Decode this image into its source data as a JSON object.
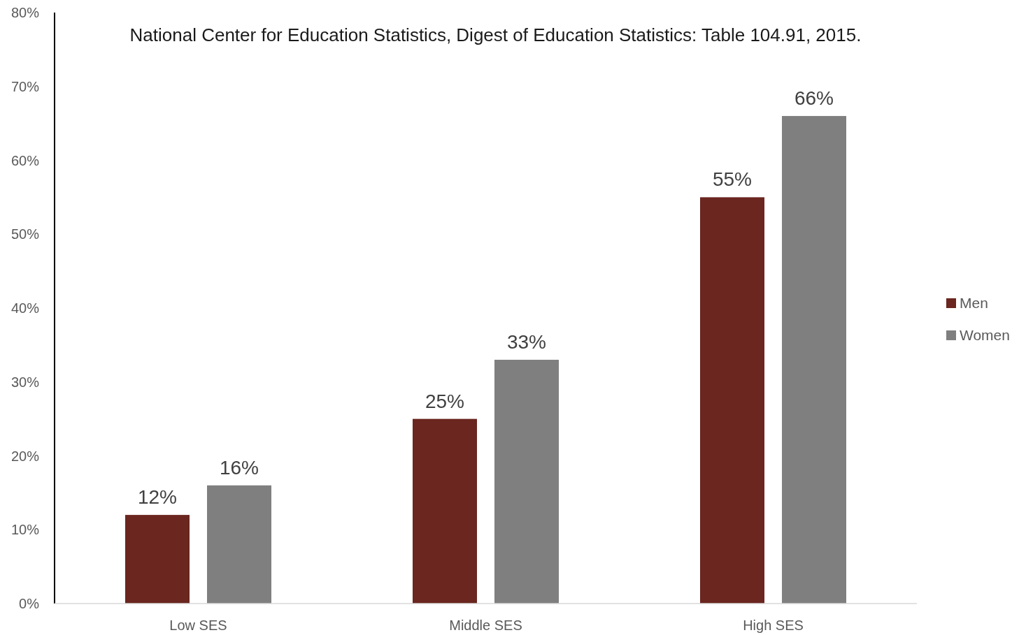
{
  "chart_data": {
    "type": "bar",
    "title": "National Center for Education Statistics, Digest of Education Statistics: Table 104.91, 2015.",
    "categories": [
      "Low SES",
      "Middle SES",
      "High SES"
    ],
    "series": [
      {
        "name": "Men",
        "color": "#6a261f",
        "values": [
          12,
          25,
          55
        ],
        "value_labels": [
          "12%",
          "25%",
          "55%"
        ]
      },
      {
        "name": "Women",
        "color": "#7f7f7f",
        "values": [
          16,
          33,
          66
        ],
        "value_labels": [
          "16%",
          "33%",
          "66%"
        ]
      }
    ],
    "ylim": [
      0,
      80
    ],
    "yticks": [
      {
        "value": 0,
        "label": "0%"
      },
      {
        "value": 10,
        "label": "10%"
      },
      {
        "value": 20,
        "label": "20%"
      },
      {
        "value": 30,
        "label": "30%"
      },
      {
        "value": 40,
        "label": "40%"
      },
      {
        "value": 50,
        "label": "50%"
      },
      {
        "value": 60,
        "label": "60%"
      },
      {
        "value": 70,
        "label": "70%"
      },
      {
        "value": 80,
        "label": "80%"
      }
    ],
    "grid": false,
    "legend": "right"
  }
}
